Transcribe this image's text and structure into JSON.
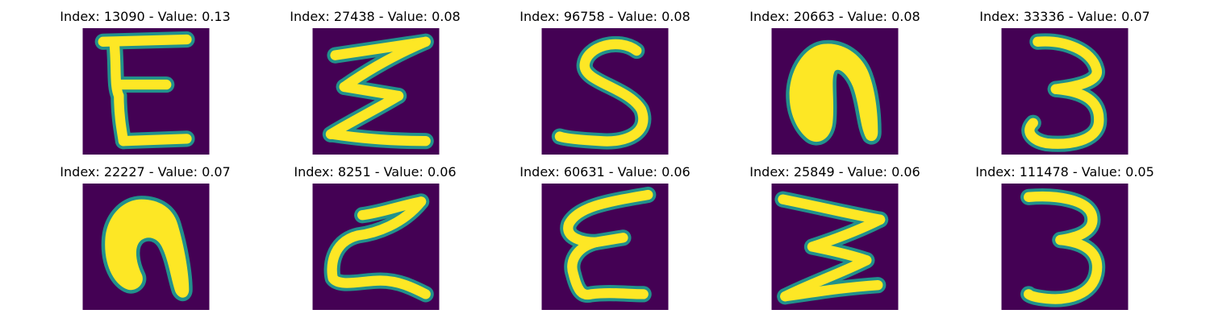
{
  "colors": {
    "background": "#440154",
    "stroke_edge": "#21918c",
    "stroke_core": "#fde725"
  },
  "images": [
    {
      "title": "Index: 13090 - Value: 0.13",
      "glyph": "E"
    },
    {
      "title": "Index: 27438 - Value: 0.08",
      "glyph": "sigma"
    },
    {
      "title": "Index: 96758 - Value: 0.08",
      "glyph": "S"
    },
    {
      "title": "Index: 20663 - Value: 0.08",
      "glyph": "n"
    },
    {
      "title": "Index: 33336 - Value: 0.07",
      "glyph": "3"
    },
    {
      "title": "Index: 22227 - Value: 0.07",
      "glyph": "n"
    },
    {
      "title": "Index: 8251 - Value: 0.06",
      "glyph": "z"
    },
    {
      "title": "Index: 60631 - Value: 0.06",
      "glyph": "epsilon"
    },
    {
      "title": "Index: 25849 - Value: 0.06",
      "glyph": "W"
    },
    {
      "title": "Index: 111478 - Value: 0.05",
      "glyph": "3"
    }
  ]
}
